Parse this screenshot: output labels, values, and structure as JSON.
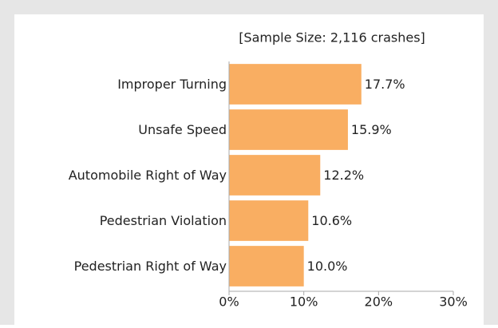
{
  "chart_data": {
    "type": "bar",
    "orientation": "horizontal",
    "subtitle": "[Sample Size: 2,116 crashes]",
    "categories": [
      "Improper Turning",
      "Unsafe Speed",
      "Automobile Right of Way",
      "Pedestrian Violation",
      "Pedestrian Right of Way"
    ],
    "values": [
      17.7,
      15.9,
      12.2,
      10.6,
      10.0
    ],
    "value_labels": [
      "17.7%",
      "15.9%",
      "12.2%",
      "10.6%",
      "10.0%"
    ],
    "color": "#f9ae62",
    "xlim": [
      0,
      30
    ],
    "xticks": [
      {
        "value": 0,
        "label": "0%"
      },
      {
        "value": 10,
        "label": "10%"
      },
      {
        "value": 20,
        "label": "20%"
      },
      {
        "value": 30,
        "label": "30%"
      }
    ],
    "grid": false
  }
}
